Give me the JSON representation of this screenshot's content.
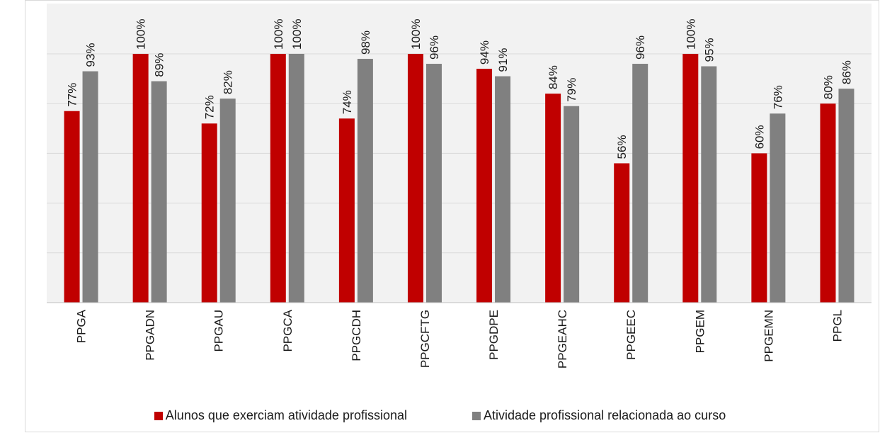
{
  "chart_data": {
    "type": "bar",
    "categories": [
      "PPGA",
      "PPGADN",
      "PPGAU",
      "PPGCA",
      "PPGCDH",
      "PPGCFTG",
      "PPGDPE",
      "PPGEAHC",
      "PPGEEC",
      "PPGEM",
      "PPGEMN",
      "PPGL"
    ],
    "series": [
      {
        "name": "Alunos que exerciam atividade profissional",
        "values": [
          77,
          100,
          72,
          100,
          74,
          100,
          94,
          84,
          56,
          100,
          60,
          80
        ],
        "labels": [
          "77%",
          "100%",
          "72%",
          "100%",
          "74%",
          "100%",
          "94%",
          "84%",
          "56%",
          "100%",
          "60%",
          "80%"
        ],
        "color": "#c00000"
      },
      {
        "name": "Atividade profissional relacionada ao curso",
        "values": [
          93,
          89,
          82,
          100,
          98,
          96,
          91,
          79,
          96,
          95,
          76,
          86
        ],
        "labels": [
          "93%",
          "89%",
          "82%",
          "100%",
          "98%",
          "96%",
          "91%",
          "79%",
          "96%",
          "95%",
          "76%",
          "86%"
        ],
        "color": "#808080"
      }
    ],
    "ylim": [
      0,
      100
    ],
    "grid": true,
    "legend_position": "bottom"
  }
}
